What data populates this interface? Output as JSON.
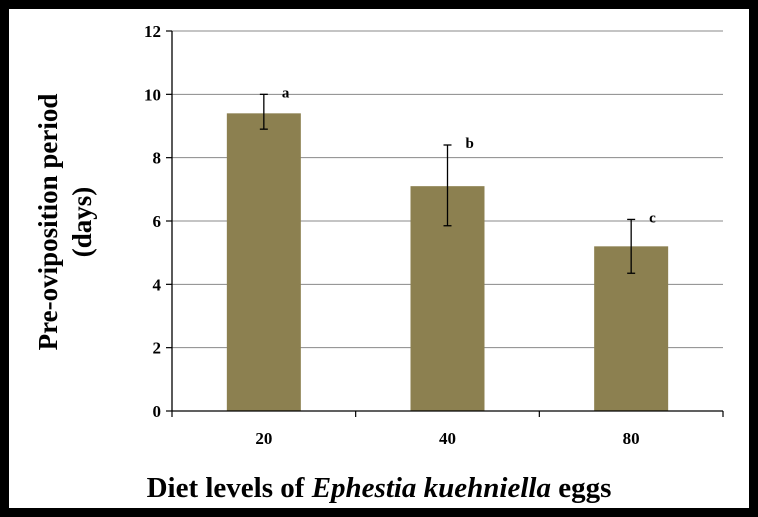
{
  "chart_data": {
    "type": "bar",
    "categories": [
      "20",
      "40",
      "80"
    ],
    "values": [
      9.4,
      7.1,
      5.2
    ],
    "error_low": [
      8.9,
      5.85,
      4.35
    ],
    "error_high": [
      10.0,
      8.4,
      6.05
    ],
    "significance_letters": [
      "a",
      "b",
      "c"
    ],
    "y_ticks": [
      "0",
      "2",
      "4",
      "6",
      "8",
      "10",
      "12"
    ],
    "ylim": [
      0,
      12
    ],
    "ylabel_line1": "Pre-oviposition period",
    "ylabel_line2": "(days)",
    "xlabel_prefix": "Diet levels of ",
    "xlabel_italic": "Ephestia kuehniella",
    "xlabel_suffix": " eggs",
    "grid": true,
    "bar_color": "#8c8050"
  }
}
